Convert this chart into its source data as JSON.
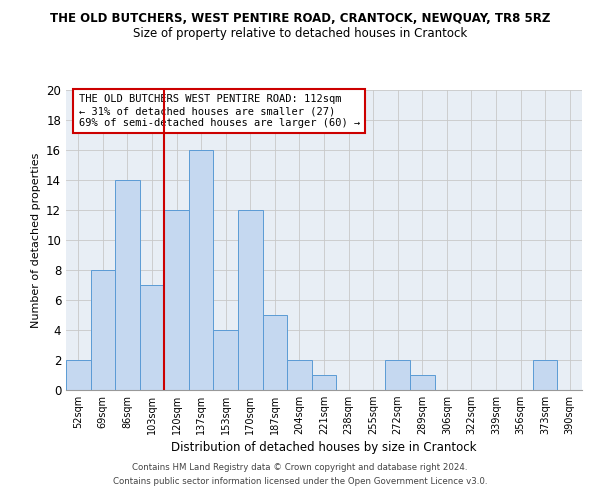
{
  "title": "THE OLD BUTCHERS, WEST PENTIRE ROAD, CRANTOCK, NEWQUAY, TR8 5RZ",
  "subtitle": "Size of property relative to detached houses in Crantock",
  "xlabel": "Distribution of detached houses by size in Crantock",
  "ylabel": "Number of detached properties",
  "categories": [
    "52sqm",
    "69sqm",
    "86sqm",
    "103sqm",
    "120sqm",
    "137sqm",
    "153sqm",
    "170sqm",
    "187sqm",
    "204sqm",
    "221sqm",
    "238sqm",
    "255sqm",
    "272sqm",
    "289sqm",
    "306sqm",
    "322sqm",
    "339sqm",
    "356sqm",
    "373sqm",
    "390sqm"
  ],
  "values": [
    2,
    8,
    14,
    7,
    12,
    16,
    4,
    12,
    5,
    2,
    1,
    0,
    0,
    2,
    1,
    0,
    0,
    0,
    0,
    2,
    0
  ],
  "bar_color": "#c5d8f0",
  "bar_edge_color": "#5b9bd5",
  "grid_color": "#c8c8c8",
  "vline_x": 3.5,
  "vline_color": "#cc0000",
  "annotation_text": "THE OLD BUTCHERS WEST PENTIRE ROAD: 112sqm\n← 31% of detached houses are smaller (27)\n69% of semi-detached houses are larger (60) →",
  "annotation_box_color": "#ffffff",
  "annotation_box_edge": "#cc0000",
  "ylim": [
    0,
    20
  ],
  "yticks": [
    0,
    2,
    4,
    6,
    8,
    10,
    12,
    14,
    16,
    18,
    20
  ],
  "footer1": "Contains HM Land Registry data © Crown copyright and database right 2024.",
  "footer2": "Contains public sector information licensed under the Open Government Licence v3.0.",
  "plot_bg_color": "#e8eef5"
}
